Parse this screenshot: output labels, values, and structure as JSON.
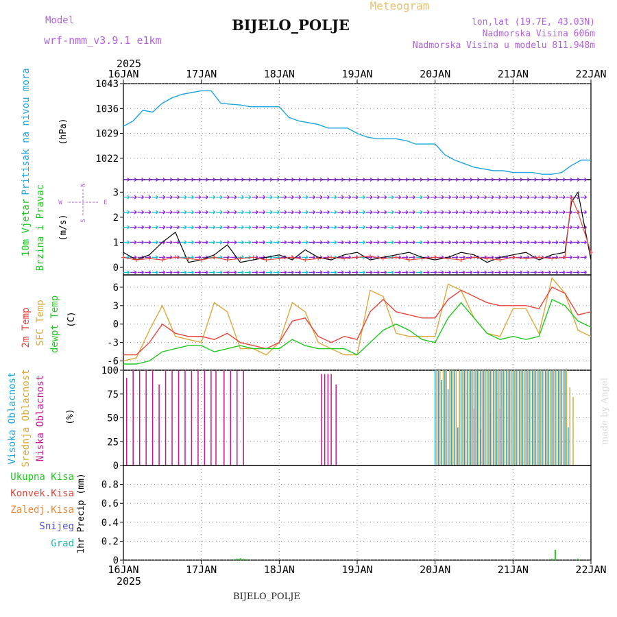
{
  "header": {
    "model_label": "Model",
    "model_name": "wrf-nmm_v3.9.1  e1km",
    "title": "BIJELO_POLJE",
    "product": "Meteogram",
    "lonlat": "lon,lat (19.7E, 43.03N)",
    "elevation": "Nadmorska Visina 606m",
    "model_elevation": "Nadmorska Visina u modelu 811.948m",
    "credit": "made by Angel",
    "footer_station": "BIJELO_POLJE"
  },
  "colors": {
    "pressure": "#1ea4e0",
    "temp2m": "#e8443a",
    "sfc_temp": "#dba83a",
    "dewpoint": "#1ec81e",
    "high_cloud": "#1ea4e0",
    "mid_cloud": "#dba83a",
    "low_cloud": "#c8168c",
    "precip_total": "#1ec81e",
    "wind_purple": "#8a2be2",
    "wind_cyan": "#18c0d0"
  },
  "chart_data": [
    {
      "type": "line",
      "panel": "pressure",
      "ylabel_left": "Pritisak na nivou mora",
      "unit": "(hPa)",
      "ylim": [
        1016,
        1043
      ],
      "yticks": [
        1022,
        1029,
        1036,
        1043
      ],
      "xlim": [
        0,
        144
      ],
      "top_xticks": [
        "2025",
        "16JAN",
        "17JAN",
        "18JAN",
        "19JAN",
        "20JAN",
        "21JAN",
        "22JAN"
      ],
      "series": [
        {
          "name": "",
          "x": [
            0,
            3,
            6,
            9,
            12,
            15,
            18,
            21,
            24,
            27,
            30,
            33,
            36,
            39,
            42,
            45,
            48,
            51,
            54,
            57,
            60,
            63,
            66,
            69,
            72,
            75,
            78,
            81,
            84,
            87,
            90,
            93,
            96,
            99,
            102,
            105,
            108,
            111,
            114,
            117,
            120,
            123,
            126,
            129,
            132,
            135,
            138,
            141,
            144
          ],
          "values": [
            1031,
            1032.5,
            1035.5,
            1035,
            1037.5,
            1039,
            1040,
            1040.5,
            1041,
            1041,
            1037.5,
            1037.2,
            1037,
            1036.5,
            1036.5,
            1036.5,
            1036.5,
            1033.5,
            1032.5,
            1032,
            1031.5,
            1030.5,
            1030.5,
            1030.5,
            1029,
            1028,
            1027.5,
            1027.5,
            1027.5,
            1027,
            1026,
            1026,
            1026,
            1023,
            1021.5,
            1020.5,
            1019.5,
            1019,
            1018.5,
            1018.5,
            1018,
            1018,
            1018,
            1017.5,
            1017.5,
            1018,
            1020,
            1021.5,
            1021.5
          ]
        }
      ]
    },
    {
      "type": "line",
      "panel": "wind",
      "ylabel_left": [
        "10m Vjetar",
        "Brzina i Pravac"
      ],
      "unit": "(m/s)",
      "compass": [
        "N",
        "E",
        "S",
        "W"
      ],
      "ylim": [
        -0.3,
        3.5
      ],
      "yticks": [
        0,
        1,
        2,
        3
      ],
      "series": [
        {
          "name": "",
          "x": [
            0,
            4,
            8,
            12,
            16,
            20,
            24,
            28,
            32,
            36,
            40,
            44,
            48,
            52,
            56,
            60,
            64,
            68,
            72,
            76,
            80,
            84,
            88,
            92,
            96,
            100,
            104,
            108,
            112,
            116,
            120,
            124,
            128,
            132,
            136,
            138,
            140,
            144
          ],
          "values": [
            0.6,
            0.3,
            0.5,
            1.0,
            1.4,
            0.2,
            0.3,
            0.5,
            0.9,
            0.2,
            0.3,
            0.4,
            0.5,
            0.3,
            0.7,
            0.4,
            0.3,
            0.5,
            0.6,
            0.3,
            0.4,
            0.5,
            0.6,
            0.4,
            0.3,
            0.4,
            0.6,
            0.5,
            0.2,
            0.4,
            0.5,
            0.6,
            0.3,
            0.5,
            0.6,
            2.6,
            3.0,
            0.3
          ]
        },
        {
          "name": "",
          "x": [
            0,
            4,
            8,
            12,
            16,
            20,
            24,
            28,
            32,
            36,
            40,
            44,
            48,
            52,
            56,
            60,
            64,
            68,
            72,
            76,
            80,
            84,
            88,
            92,
            96,
            100,
            104,
            108,
            112,
            116,
            120,
            124,
            128,
            132,
            136,
            138,
            140,
            144
          ],
          "values": [
            0.4,
            0.3,
            0.35,
            0.3,
            0.4,
            0.35,
            0.3,
            0.4,
            0.3,
            0.35,
            0.4,
            0.3,
            0.35,
            0.4,
            0.3,
            0.35,
            0.4,
            0.35,
            0.4,
            0.45,
            0.35,
            0.4,
            0.3,
            0.35,
            0.4,
            0.35,
            0.3,
            0.4,
            0.35,
            0.3,
            0.4,
            0.35,
            0.4,
            0.35,
            0.4,
            2.8,
            2.2,
            0.6
          ]
        }
      ]
    },
    {
      "type": "line",
      "panel": "temperature",
      "ylabel_left": [
        "2m Temp",
        "SFC Temp",
        "dewpt Temp"
      ],
      "unit": "(C)",
      "ylim": [
        -7.5,
        8
      ],
      "yticks": [
        -6,
        -3,
        0,
        3,
        6
      ],
      "series": [
        {
          "name": "2m Temp",
          "x": [
            0,
            4,
            8,
            12,
            16,
            20,
            24,
            28,
            32,
            36,
            40,
            44,
            48,
            52,
            56,
            60,
            64,
            68,
            72,
            76,
            80,
            84,
            88,
            92,
            96,
            100,
            104,
            108,
            112,
            116,
            120,
            124,
            128,
            132,
            136,
            140,
            144
          ],
          "values": [
            -5,
            -5,
            -3,
            0,
            -1.5,
            -2,
            -2,
            -2.5,
            -1.5,
            -3,
            -3.5,
            -4,
            -3,
            0.5,
            1,
            -2,
            -3,
            -2,
            -2.5,
            2,
            4,
            2,
            1.5,
            1,
            1,
            4,
            5.5,
            4.5,
            3.5,
            3,
            3,
            3,
            2.5,
            6,
            5,
            1.5,
            2
          ]
        },
        {
          "name": "SFC Temp",
          "x": [
            0,
            4,
            8,
            12,
            16,
            20,
            24,
            28,
            32,
            36,
            40,
            44,
            48,
            52,
            56,
            60,
            64,
            68,
            72,
            76,
            80,
            84,
            88,
            92,
            96,
            100,
            104,
            108,
            112,
            116,
            120,
            124,
            128,
            132,
            136,
            140,
            144
          ],
          "values": [
            -6,
            -5.5,
            -1,
            3,
            -2,
            -2.5,
            -3,
            3.5,
            2,
            -4,
            -4,
            -5,
            -3,
            3.5,
            2,
            -3,
            -4,
            -5,
            -5,
            5.5,
            4.5,
            -1.5,
            -2,
            -2,
            -2,
            6.5,
            5.5,
            1,
            -1.5,
            -2,
            2.5,
            2.5,
            -1.5,
            7.5,
            5,
            -1,
            -2
          ]
        },
        {
          "name": "dewpt Temp",
          "x": [
            0,
            4,
            8,
            12,
            16,
            20,
            24,
            28,
            32,
            36,
            40,
            44,
            48,
            52,
            56,
            60,
            64,
            68,
            72,
            76,
            80,
            84,
            88,
            92,
            96,
            100,
            104,
            108,
            112,
            116,
            120,
            124,
            128,
            132,
            136,
            140,
            144
          ],
          "values": [
            -6.5,
            -6.5,
            -6,
            -4.5,
            -4,
            -3.5,
            -3.5,
            -4.5,
            -4,
            -3.5,
            -4,
            -4,
            -4,
            -2.5,
            -3.5,
            -4,
            -4,
            -4,
            -5,
            -3,
            -1,
            0,
            -1,
            -2.5,
            -3,
            1,
            3.5,
            1,
            -1.5,
            -2.5,
            -2,
            -2.5,
            -2,
            4,
            3,
            0.5,
            -0.5
          ]
        }
      ]
    },
    {
      "type": "bar",
      "panel": "clouds",
      "ylabel_left": [
        "Visoka Oblacnost",
        "Srednja Oblacnost",
        "Niska Oblacnost"
      ],
      "unit": "(%)",
      "ylim": [
        0,
        100
      ],
      "yticks": [
        0,
        25,
        50,
        75,
        100
      ],
      "series": [
        {
          "name": "Niska Oblacnost",
          "x": [
            1,
            3,
            5,
            7,
            9,
            11,
            13,
            15,
            17,
            19,
            21,
            23,
            25,
            27,
            28.5,
            31,
            33,
            35,
            37,
            61,
            62,
            63,
            64,
            65.5,
            108,
            110,
            113,
            116
          ],
          "values": [
            92,
            100,
            100,
            100,
            100,
            85,
            100,
            100,
            100,
            100,
            100,
            100,
            100,
            100,
            100,
            100,
            100,
            100,
            100,
            96,
            96,
            96,
            96,
            85,
            60,
            38,
            55,
            60
          ]
        },
        {
          "name": "Srednja Oblacnost",
          "x": [
            96.5,
            97.5,
            98.5,
            99.5,
            100.5,
            101.5,
            102.5,
            103.5,
            104.5,
            105.5,
            106.5,
            107.5,
            108.5,
            109.5,
            110.5,
            111.5,
            112.5,
            113.5,
            114.5,
            115.5,
            116.5,
            117.5,
            118.5,
            119.5,
            120.5,
            121.5,
            122.5,
            123.5,
            124.5,
            125.5,
            126.5,
            127.5,
            128.5,
            129.5,
            130.5,
            131.5,
            132.5,
            133.5,
            134.5,
            135.5,
            136.5,
            137.5,
            138.5
          ],
          "values": [
            100,
            100,
            100,
            100,
            100,
            100,
            100,
            100,
            100,
            100,
            100,
            100,
            100,
            100,
            100,
            100,
            100,
            100,
            100,
            100,
            100,
            100,
            100,
            100,
            100,
            100,
            100,
            100,
            100,
            100,
            100,
            100,
            100,
            100,
            100,
            100,
            100,
            100,
            100,
            100,
            100,
            82,
            72
          ]
        },
        {
          "name": "Visoka Oblacnost",
          "x": [
            96,
            97,
            98,
            99,
            100,
            101,
            102,
            103,
            104,
            105,
            106,
            107,
            108,
            109,
            110,
            111,
            112,
            113,
            114,
            115,
            116,
            117,
            118,
            119,
            120,
            121,
            122,
            123,
            124,
            125,
            126,
            127,
            128,
            129,
            130,
            131,
            132,
            133,
            134,
            135,
            136,
            137
          ],
          "values": [
            100,
            100,
            90,
            100,
            80,
            100,
            100,
            40,
            100,
            100,
            100,
            100,
            100,
            100,
            100,
            100,
            100,
            100,
            100,
            100,
            100,
            100,
            100,
            100,
            100,
            100,
            100,
            100,
            100,
            100,
            100,
            100,
            100,
            100,
            100,
            100,
            100,
            100,
            100,
            100,
            100,
            40
          ]
        }
      ]
    },
    {
      "type": "bar",
      "panel": "precipitation",
      "ylabel_left": [
        "Ukupna Kisa",
        "Konvek.Kisa",
        "Zaledj.Kisa",
        "Snijeg",
        "Grad"
      ],
      "unit": "1hr Precip (mm)",
      "ylim": [
        0,
        1.0
      ],
      "yticks": [
        0,
        0.2,
        0.4,
        0.6,
        0.8
      ],
      "bottom_xticks": [
        "16JAN",
        "17JAN",
        "18JAN",
        "19JAN",
        "20JAN",
        "21JAN",
        "22JAN"
      ],
      "bottom_year": "2025",
      "series": [
        {
          "name": "Ukupna Kisa",
          "x": [
            34,
            35,
            36,
            37,
            38,
            132,
            133,
            140
          ],
          "values": [
            0.01,
            0.015,
            0.02,
            0.015,
            0.01,
            0.015,
            0.11,
            0.015
          ]
        }
      ]
    }
  ]
}
